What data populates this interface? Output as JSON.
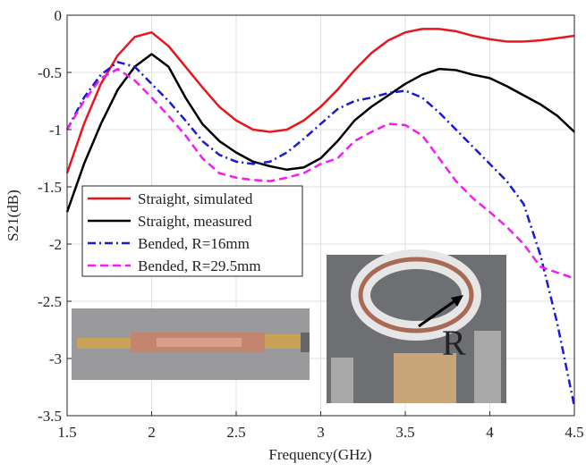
{
  "chart_data": {
    "type": "line",
    "xlabel": "Frequency(GHz)",
    "ylabel": "S21(dB)",
    "x": [
      1.5,
      1.6,
      1.7,
      1.8,
      1.9,
      2.0,
      2.1,
      2.2,
      2.3,
      2.4,
      2.5,
      2.6,
      2.7,
      2.8,
      2.9,
      3.0,
      3.1,
      3.2,
      3.3,
      3.4,
      3.5,
      3.6,
      3.7,
      3.8,
      3.9,
      4.0,
      4.1,
      4.2,
      4.3,
      4.4,
      4.5
    ],
    "series": [
      {
        "name": "Straight, simulated",
        "color": "#e8161a",
        "dash": "solid",
        "values": [
          -1.38,
          -0.95,
          -0.6,
          -0.35,
          -0.19,
          -0.15,
          -0.27,
          -0.45,
          -0.63,
          -0.8,
          -0.92,
          -1.0,
          -1.02,
          -1.0,
          -0.92,
          -0.8,
          -0.65,
          -0.48,
          -0.33,
          -0.22,
          -0.15,
          -0.12,
          -0.12,
          -0.14,
          -0.18,
          -0.21,
          -0.23,
          -0.23,
          -0.22,
          -0.2,
          -0.18
        ]
      },
      {
        "name": "Straight, measured",
        "color": "#000000",
        "dash": "solid",
        "values": [
          -1.72,
          -1.3,
          -0.95,
          -0.65,
          -0.45,
          -0.34,
          -0.45,
          -0.72,
          -0.95,
          -1.1,
          -1.2,
          -1.28,
          -1.32,
          -1.35,
          -1.33,
          -1.25,
          -1.1,
          -0.92,
          -0.8,
          -0.7,
          -0.6,
          -0.52,
          -0.47,
          -0.48,
          -0.52,
          -0.55,
          -0.62,
          -0.7,
          -0.78,
          -0.88,
          -1.02
        ]
      },
      {
        "name": "Bended, R=16mm",
        "color": "#1a1ad0",
        "dash": "dashdot",
        "values": [
          -1.0,
          -0.72,
          -0.52,
          -0.41,
          -0.45,
          -0.6,
          -0.75,
          -0.92,
          -1.1,
          -1.22,
          -1.28,
          -1.3,
          -1.28,
          -1.2,
          -1.08,
          -0.95,
          -0.82,
          -0.75,
          -0.72,
          -0.68,
          -0.66,
          -0.72,
          -0.85,
          -1.0,
          -1.15,
          -1.3,
          -1.45,
          -1.65,
          -2.1,
          -2.7,
          -3.42
        ]
      },
      {
        "name": "Bended, R=29.5mm",
        "color": "#f01ef0",
        "dash": "dashed",
        "values": [
          -1.0,
          -0.75,
          -0.55,
          -0.47,
          -0.57,
          -0.72,
          -0.88,
          -1.05,
          -1.25,
          -1.38,
          -1.42,
          -1.44,
          -1.45,
          -1.42,
          -1.38,
          -1.3,
          -1.25,
          -1.1,
          -1.02,
          -0.95,
          -0.96,
          -1.05,
          -1.25,
          -1.45,
          -1.6,
          -1.72,
          -1.85,
          -2.0,
          -2.2,
          -2.25,
          -2.3
        ]
      }
    ],
    "xlim": [
      1.5,
      4.5
    ],
    "xticks": [
      1.5,
      2,
      2.5,
      3,
      3.5,
      4,
      4.5
    ],
    "ylim": [
      -3.5,
      0
    ],
    "yticks": [
      0,
      -0.5,
      -1,
      -1.5,
      -2,
      -2.5,
      -3,
      -3.5
    ],
    "grid": true,
    "legend": "center-left",
    "annotations": [
      "R"
    ]
  }
}
